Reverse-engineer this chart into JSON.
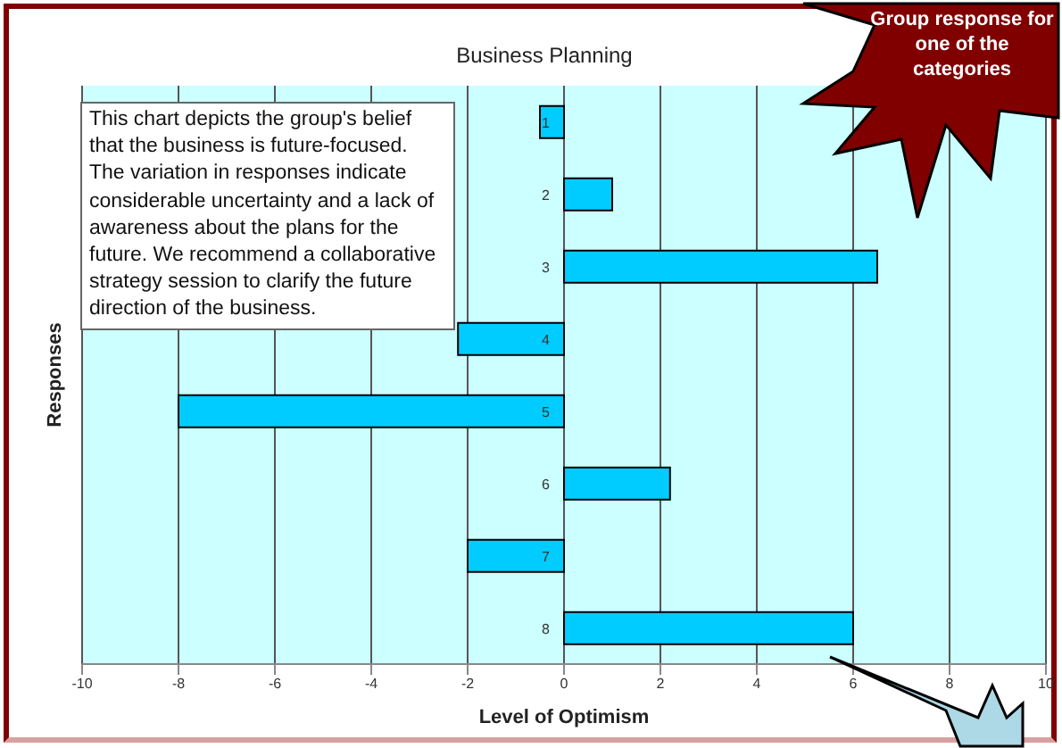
{
  "chart_data": {
    "type": "bar",
    "orientation": "horizontal",
    "title": "Business Planning",
    "xlabel": "Level of Optimism",
    "ylabel": "Responses",
    "categories": [
      "1",
      "2",
      "3",
      "4",
      "5",
      "6",
      "7",
      "8"
    ],
    "values": [
      -0.5,
      1,
      6.5,
      -2.2,
      -8,
      2.2,
      -2,
      6
    ],
    "color": "#00ccff",
    "xlim": [
      -10,
      10
    ],
    "xticks": [
      -10,
      -8,
      -6,
      -4,
      -2,
      0,
      2,
      4,
      6,
      8,
      10
    ],
    "grid": "x",
    "annotations": [
      "This chart depicts the group's belief that the business is future-focused. The variation in responses indicate considerable uncertainty and a lack of awareness about the plans for the future. We recommend a collaborative strategy session to clarify the future direction of the business.",
      "Group response for one of the categories"
    ]
  }
}
